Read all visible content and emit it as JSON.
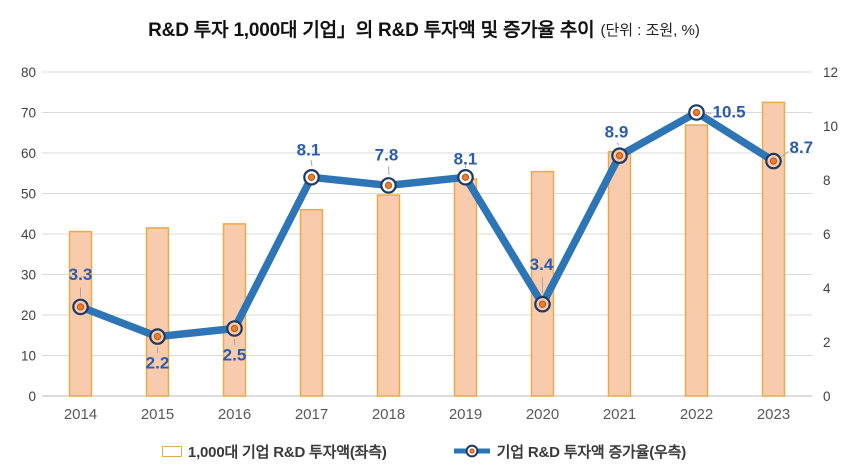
{
  "title": {
    "main": "R&D 투자 1,000대 기업」의 R&D 투자액 및 증가율 추이",
    "unit": "(단위 : 조원, %)"
  },
  "legend": {
    "items": [
      {
        "label": "1,000대 기업 R&D 투자액(좌측)",
        "swatch": "bar"
      },
      {
        "label": "기업 R&D 투자액 증가율(우측)",
        "swatch": "line-marker"
      }
    ],
    "position": "bottom"
  },
  "colors": {
    "bar_fill": "#F8CBAD",
    "bar_border": "#E7AC48",
    "line": "#2E75B6",
    "marker_ring": "#1F3864",
    "marker_fill_over_bar": "#F8CBAD",
    "marker_fill_over_bg": "#FDFDFD",
    "marker_dot": "#ED7D31",
    "marker_dot_edge": "#B55B15",
    "data_label": "#2B5CA9",
    "gridline": "#D9D9D9",
    "axis_line": "#C6C6C6",
    "tick_text": "#404040",
    "year_text": "#595959",
    "leader_line": "#A6A6A6"
  },
  "chart_data": {
    "type": "bar",
    "subtype": "combo-bar-line",
    "title": "R&D 투자 1,000대 기업」의 R&D 투자액 및 증가율 추이",
    "unit_note": "(단위 : 조원, %)",
    "categories": [
      "2014",
      "2015",
      "2016",
      "2017",
      "2018",
      "2019",
      "2020",
      "2021",
      "2022",
      "2023"
    ],
    "series": [
      {
        "name": "1,000대 기업 R&D 투자액(좌측)",
        "type": "bar",
        "axis": "left",
        "values": [
          40.6,
          41.5,
          42.5,
          46.0,
          49.6,
          53.6,
          55.4,
          60.3,
          66.9,
          72.5
        ]
      },
      {
        "name": "기업 R&D 투자액 증가율(우측)",
        "type": "line",
        "axis": "right",
        "values": [
          3.3,
          2.2,
          2.5,
          8.1,
          7.8,
          8.1,
          3.4,
          8.9,
          10.5,
          8.7
        ],
        "point_labels": [
          "3.3",
          "2.2",
          "2.5",
          "8.1",
          "7.8",
          "8.1",
          "3.4",
          "8.9",
          "10.5",
          "8.7"
        ]
      }
    ],
    "left_axis": {
      "min": 0,
      "max": 80,
      "ticks": [
        0,
        10,
        20,
        30,
        40,
        50,
        60,
        70,
        80
      ]
    },
    "right_axis": {
      "min": 0,
      "max": 12,
      "ticks": [
        0,
        2,
        4,
        6,
        8,
        10,
        12
      ]
    },
    "grid": true,
    "legend_position": "bottom"
  }
}
